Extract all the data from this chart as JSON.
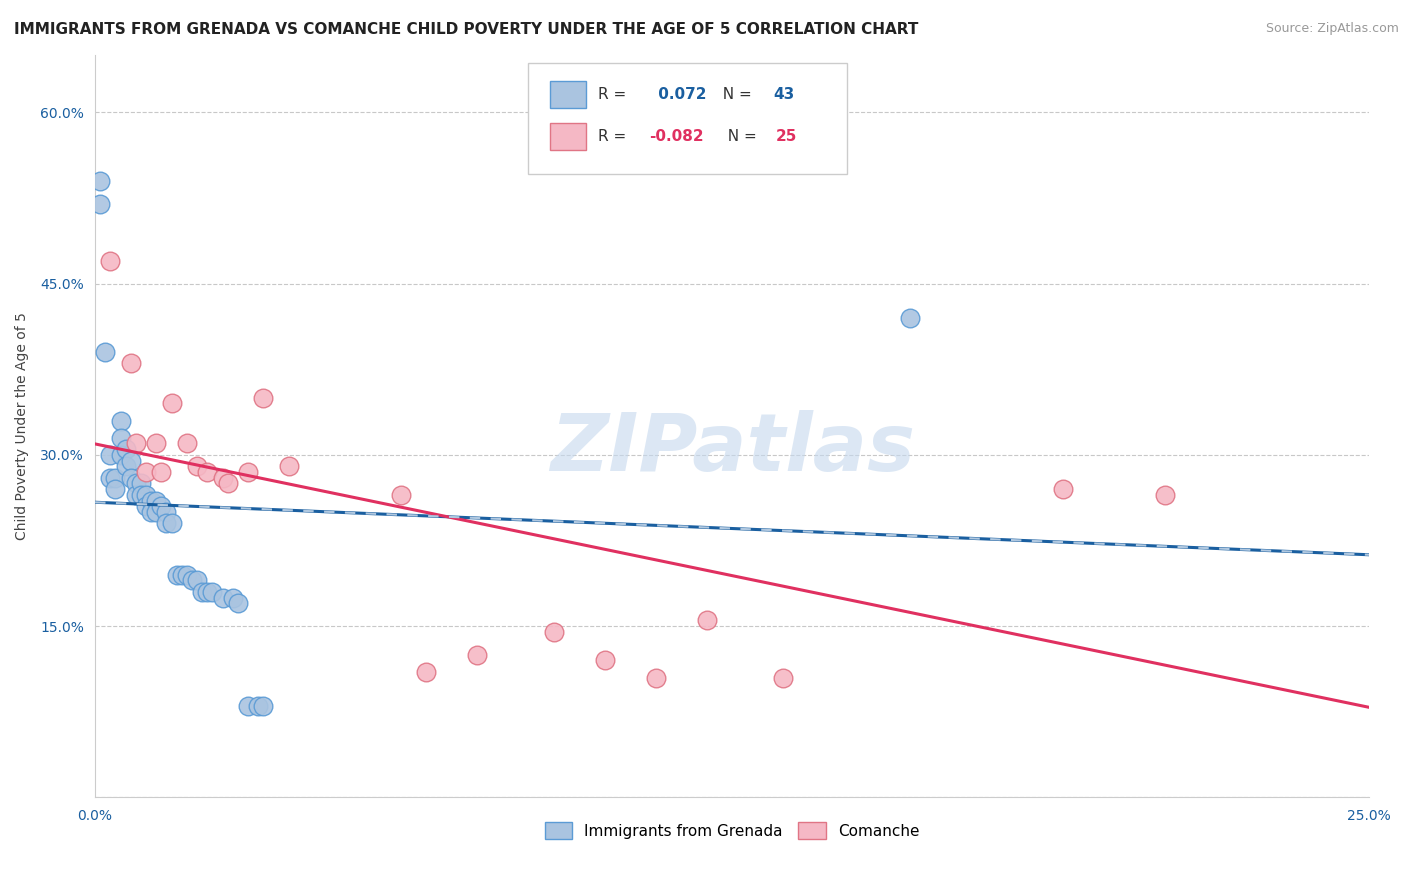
{
  "title": "IMMIGRANTS FROM GRENADA VS COMANCHE CHILD POVERTY UNDER THE AGE OF 5 CORRELATION CHART",
  "source": "Source: ZipAtlas.com",
  "ylabel": "Child Poverty Under the Age of 5",
  "xlim": [
    0.0,
    0.25
  ],
  "ylim": [
    0.0,
    0.65
  ],
  "xtick_positions": [
    0.0,
    0.05,
    0.1,
    0.15,
    0.2,
    0.25
  ],
  "xtick_labels": [
    "0.0%",
    "",
    "",
    "",
    "",
    "25.0%"
  ],
  "ytick_positions": [
    0.0,
    0.15,
    0.3,
    0.45,
    0.6
  ],
  "ytick_labels": [
    "",
    "15.0%",
    "30.0%",
    "45.0%",
    "60.0%"
  ],
  "background_color": "#ffffff",
  "grid_color": "#c8c8c8",
  "blue_r": 0.072,
  "blue_n": 43,
  "pink_r": -0.082,
  "pink_n": 25,
  "blue_scatter_x": [
    0.001,
    0.001,
    0.002,
    0.003,
    0.003,
    0.004,
    0.004,
    0.005,
    0.005,
    0.005,
    0.006,
    0.006,
    0.007,
    0.007,
    0.008,
    0.008,
    0.009,
    0.009,
    0.01,
    0.01,
    0.011,
    0.011,
    0.012,
    0.012,
    0.013,
    0.014,
    0.014,
    0.015,
    0.016,
    0.017,
    0.018,
    0.019,
    0.02,
    0.021,
    0.022,
    0.023,
    0.025,
    0.027,
    0.028,
    0.03,
    0.032,
    0.033,
    0.16
  ],
  "blue_scatter_y": [
    0.54,
    0.52,
    0.39,
    0.3,
    0.28,
    0.28,
    0.27,
    0.33,
    0.315,
    0.3,
    0.305,
    0.29,
    0.295,
    0.28,
    0.275,
    0.265,
    0.275,
    0.265,
    0.265,
    0.255,
    0.26,
    0.25,
    0.26,
    0.25,
    0.255,
    0.25,
    0.24,
    0.24,
    0.195,
    0.195,
    0.195,
    0.19,
    0.19,
    0.18,
    0.18,
    0.18,
    0.175,
    0.175,
    0.17,
    0.08,
    0.08,
    0.08,
    0.42
  ],
  "pink_scatter_x": [
    0.003,
    0.007,
    0.008,
    0.01,
    0.012,
    0.013,
    0.015,
    0.018,
    0.02,
    0.022,
    0.025,
    0.026,
    0.03,
    0.033,
    0.038,
    0.06,
    0.065,
    0.075,
    0.09,
    0.1,
    0.11,
    0.12,
    0.135,
    0.19,
    0.21
  ],
  "pink_scatter_y": [
    0.47,
    0.38,
    0.31,
    0.285,
    0.31,
    0.285,
    0.345,
    0.31,
    0.29,
    0.285,
    0.28,
    0.275,
    0.285,
    0.35,
    0.29,
    0.265,
    0.11,
    0.125,
    0.145,
    0.12,
    0.105,
    0.155,
    0.105,
    0.27,
    0.265
  ],
  "blue_color": "#aac4e0",
  "blue_edge": "#5b9bd5",
  "pink_color": "#f5b8c5",
  "pink_edge": "#e07585",
  "blue_line_color": "#1a5fa0",
  "pink_line_color": "#e03060",
  "dash_color": "#b0c8e0",
  "legend_blue_label": "Immigrants from Grenada",
  "legend_pink_label": "Comanche",
  "title_fontsize": 11,
  "axis_label_fontsize": 10,
  "tick_fontsize": 10,
  "source_fontsize": 9,
  "watermark_text": "ZIPatlas"
}
